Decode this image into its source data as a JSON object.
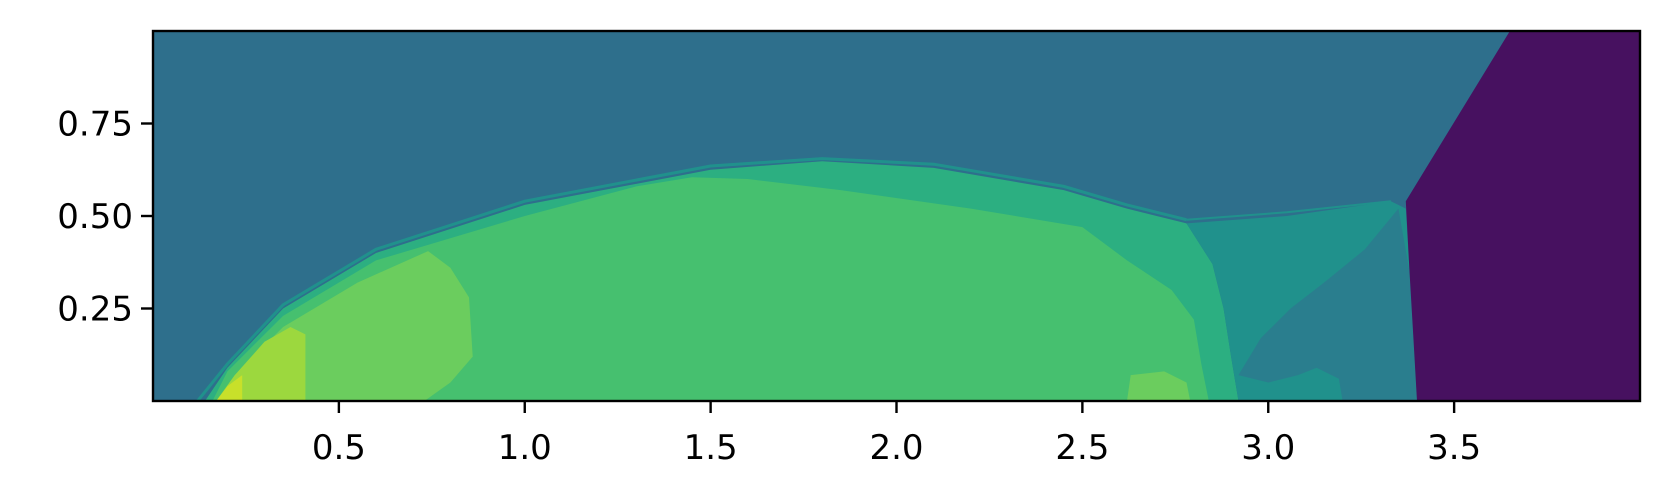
{
  "chart_data": {
    "type": "heatmap",
    "title": "",
    "xlabel": "",
    "ylabel": "",
    "xlim": [
      0.0,
      4.0
    ],
    "ylim": [
      0.0,
      1.0
    ],
    "x_ticks": [
      "0.5",
      "1.0",
      "1.5",
      "2.0",
      "2.5",
      "3.0",
      "3.5"
    ],
    "y_ticks": [
      "0.25",
      "0.50",
      "0.75"
    ],
    "colormap": "viridis",
    "grid": false,
    "legend": "none",
    "colors": {
      "background_field": "#2E6F8C",
      "right_region": "#471160",
      "shock_layer_outer": "#2CAF81",
      "shock_layer_main": "#46C06F",
      "bright_band": "#6BCD5E",
      "stagnation": "#9CD83E",
      "stagnation_peak": "#C8E02A",
      "wake": "#20918C",
      "wake_core": "#2A7E8E"
    },
    "regions": [
      {
        "name": "shock_layer_outer",
        "points": [
          [
            0.14,
            0.0
          ],
          [
            0.2,
            0.09
          ],
          [
            0.35,
            0.25
          ],
          [
            0.6,
            0.4
          ],
          [
            1.0,
            0.53
          ],
          [
            1.5,
            0.625
          ],
          [
            1.8,
            0.648
          ],
          [
            2.1,
            0.63
          ],
          [
            2.45,
            0.57
          ],
          [
            2.62,
            0.52
          ],
          [
            2.78,
            0.48
          ],
          [
            2.85,
            0.37
          ],
          [
            2.88,
            0.25
          ],
          [
            2.9,
            0.12
          ],
          [
            2.92,
            0.0
          ]
        ]
      },
      {
        "name": "wake",
        "points": [
          [
            2.78,
            0.48
          ],
          [
            3.05,
            0.5
          ],
          [
            3.33,
            0.54
          ],
          [
            3.37,
            0.52
          ],
          [
            3.38,
            0.35
          ],
          [
            3.39,
            0.18
          ],
          [
            3.4,
            0.0
          ],
          [
            2.92,
            0.0
          ],
          [
            2.9,
            0.12
          ],
          [
            2.88,
            0.25
          ],
          [
            2.85,
            0.37
          ]
        ]
      },
      {
        "name": "wake_core",
        "points": [
          [
            2.92,
            0.07
          ],
          [
            2.98,
            0.17
          ],
          [
            3.06,
            0.25
          ],
          [
            3.15,
            0.32
          ],
          [
            3.26,
            0.41
          ],
          [
            3.35,
            0.52
          ],
          [
            3.38,
            0.35
          ],
          [
            3.39,
            0.18
          ],
          [
            3.4,
            0.0
          ],
          [
            3.2,
            0.0
          ],
          [
            3.19,
            0.06
          ],
          [
            3.13,
            0.09
          ],
          [
            3.08,
            0.07
          ],
          [
            3.0,
            0.05
          ]
        ]
      },
      {
        "name": "shock_layer_main",
        "points": [
          [
            0.16,
            0.0
          ],
          [
            0.2,
            0.08
          ],
          [
            0.35,
            0.23
          ],
          [
            0.6,
            0.38
          ],
          [
            1.0,
            0.5
          ],
          [
            1.3,
            0.58
          ],
          [
            1.45,
            0.605
          ],
          [
            1.6,
            0.6
          ],
          [
            1.85,
            0.57
          ],
          [
            2.2,
            0.52
          ],
          [
            2.5,
            0.47
          ],
          [
            2.62,
            0.38
          ],
          [
            2.74,
            0.3
          ],
          [
            2.8,
            0.22
          ],
          [
            2.82,
            0.1
          ],
          [
            2.84,
            0.0
          ]
        ]
      },
      {
        "name": "bright_band",
        "points": [
          [
            0.17,
            0.0
          ],
          [
            0.22,
            0.07
          ],
          [
            0.35,
            0.2
          ],
          [
            0.55,
            0.32
          ],
          [
            0.74,
            0.405
          ],
          [
            0.8,
            0.36
          ],
          [
            0.85,
            0.28
          ],
          [
            0.86,
            0.12
          ],
          [
            0.8,
            0.05
          ],
          [
            0.73,
            0.0
          ]
        ]
      },
      {
        "name": "bright_band",
        "points": [
          [
            2.62,
            0.0
          ],
          [
            2.63,
            0.07
          ],
          [
            2.72,
            0.08
          ],
          [
            2.78,
            0.05
          ],
          [
            2.79,
            0.0
          ]
        ]
      },
      {
        "name": "stagnation",
        "points": [
          [
            0.17,
            0.0
          ],
          [
            0.22,
            0.07
          ],
          [
            0.3,
            0.16
          ],
          [
            0.37,
            0.2
          ],
          [
            0.41,
            0.18
          ],
          [
            0.41,
            0.07
          ],
          [
            0.41,
            0.0
          ]
        ]
      },
      {
        "name": "stagnation_peak",
        "points": [
          [
            0.17,
            0.0
          ],
          [
            0.2,
            0.04
          ],
          [
            0.24,
            0.07
          ],
          [
            0.24,
            0.0
          ]
        ]
      }
    ],
    "bow_shock": {
      "points": [
        [
          0.12,
          0.0
        ],
        [
          0.2,
          0.1
        ],
        [
          0.35,
          0.26
        ],
        [
          0.6,
          0.41
        ],
        [
          1.0,
          0.54
        ],
        [
          1.5,
          0.635
        ],
        [
          1.8,
          0.655
        ],
        [
          2.1,
          0.64
        ],
        [
          2.45,
          0.58
        ],
        [
          2.62,
          0.53
        ],
        [
          2.78,
          0.49
        ]
      ]
    },
    "oblique_shock": {
      "points": [
        [
          2.78,
          0.49
        ],
        [
          3.05,
          0.51
        ],
        [
          3.33,
          0.54
        ]
      ]
    },
    "right_front": {
      "points": [
        [
          3.37,
          0.54
        ],
        [
          3.65,
          1.0
        ],
        [
          4.0,
          1.0
        ],
        [
          4.0,
          0.0
        ],
        [
          3.4,
          0.0
        ],
        [
          3.39,
          0.18
        ],
        [
          3.38,
          0.35
        ]
      ]
    }
  }
}
